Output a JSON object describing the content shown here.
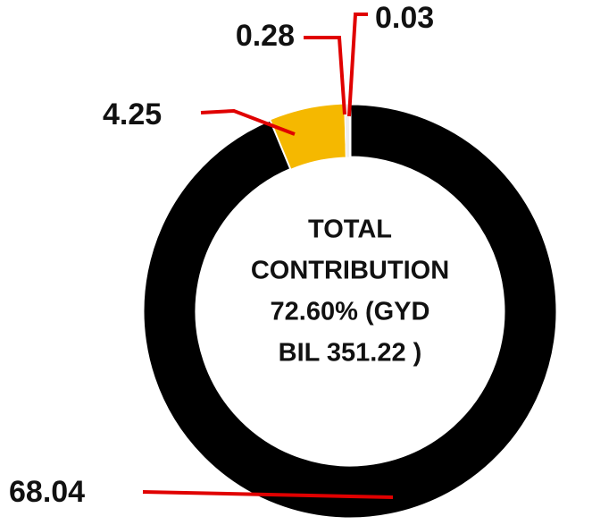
{
  "chart_data": {
    "type": "donut",
    "categories": [
      null,
      null,
      null,
      null
    ],
    "values": [
      68.04,
      4.25,
      0.28,
      0.03
    ],
    "colors": [
      "#000000",
      "#f5b800",
      "#eeeeee",
      "#e00000"
    ],
    "center_text": [
      "TOTAL",
      "CONTRIBUTION",
      "72.60% (GYD",
      "BIL 351.22 )"
    ]
  }
}
